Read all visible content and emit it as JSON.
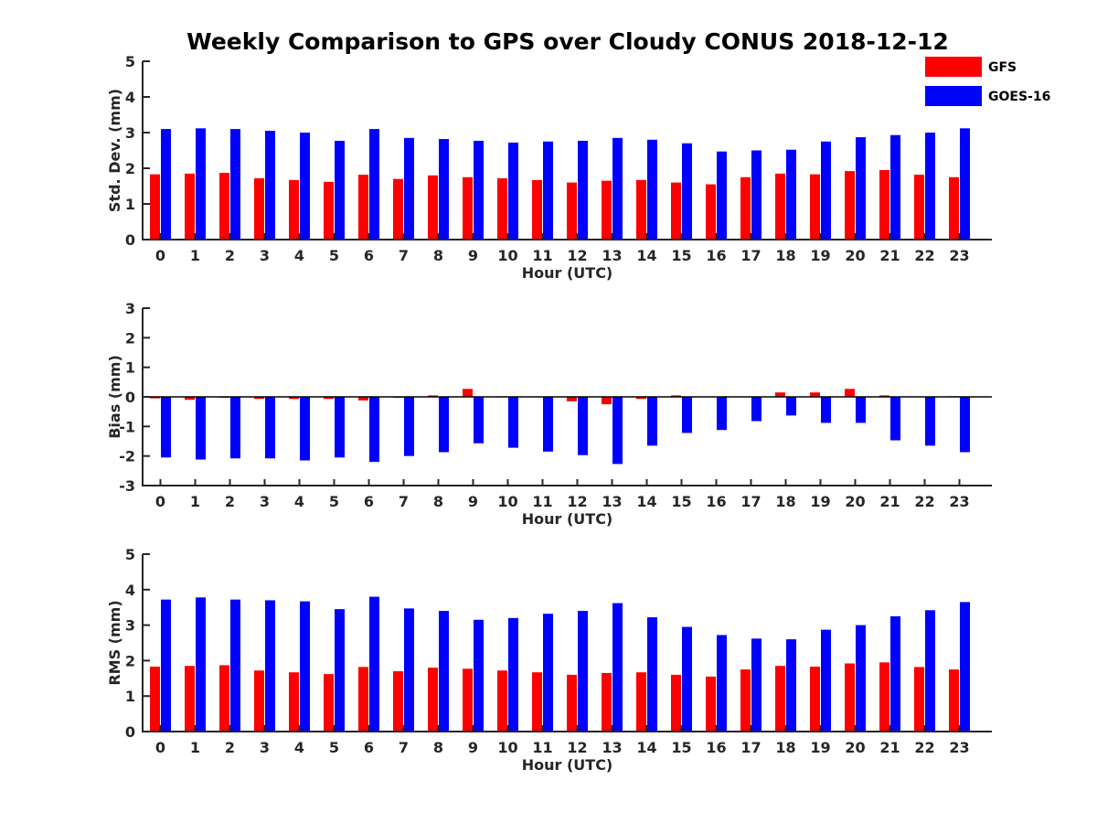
{
  "figure": {
    "title": "Weekly Comparison to GPS over Cloudy CONUS 2018-12-12",
    "legend": {
      "placement": "top-right",
      "entries": [
        "GFS",
        "GOES-16"
      ]
    }
  },
  "colors": {
    "GFS": "#ff0000",
    "GOES-16": "#0000ff"
  },
  "chart_data": [
    {
      "type": "bar",
      "xlabel": "Hour (UTC)",
      "ylabel": "Std. Dev. (mm)",
      "ylim": [
        0,
        5
      ],
      "yticks": [
        0,
        1,
        2,
        3,
        4,
        5
      ],
      "categories": [
        "0",
        "1",
        "2",
        "3",
        "4",
        "5",
        "6",
        "7",
        "8",
        "9",
        "10",
        "11",
        "12",
        "13",
        "14",
        "15",
        "16",
        "17",
        "18",
        "19",
        "20",
        "21",
        "22",
        "23"
      ],
      "series": [
        {
          "name": "GFS",
          "values": [
            1.83,
            1.85,
            1.87,
            1.72,
            1.67,
            1.62,
            1.82,
            1.7,
            1.8,
            1.75,
            1.72,
            1.67,
            1.6,
            1.65,
            1.67,
            1.6,
            1.55,
            1.75,
            1.85,
            1.83,
            1.92,
            1.95,
            1.82,
            1.75
          ]
        },
        {
          "name": "GOES-16",
          "values": [
            3.1,
            3.12,
            3.1,
            3.05,
            3.0,
            2.77,
            3.1,
            2.85,
            2.82,
            2.77,
            2.72,
            2.75,
            2.77,
            2.85,
            2.8,
            2.7,
            2.47,
            2.5,
            2.52,
            2.75,
            2.87,
            2.93,
            3.0,
            3.12
          ]
        }
      ]
    },
    {
      "type": "bar",
      "xlabel": "Hour (UTC)",
      "ylabel": "Bias (mm)",
      "ylim": [
        -3,
        3
      ],
      "yticks": [
        -3,
        -2,
        -1,
        0,
        1,
        2,
        3
      ],
      "categories": [
        "0",
        "1",
        "2",
        "3",
        "4",
        "5",
        "6",
        "7",
        "8",
        "9",
        "10",
        "11",
        "12",
        "13",
        "14",
        "15",
        "16",
        "17",
        "18",
        "19",
        "20",
        "21",
        "22",
        "23"
      ],
      "series": [
        {
          "name": "GFS",
          "values": [
            -0.05,
            -0.1,
            -0.03,
            -0.07,
            -0.07,
            -0.07,
            -0.12,
            -0.03,
            0.05,
            0.27,
            0.02,
            0.0,
            -0.15,
            -0.25,
            -0.07,
            0.05,
            0.0,
            0.0,
            0.15,
            0.15,
            0.27,
            0.05,
            0.0,
            0.02
          ]
        },
        {
          "name": "GOES-16",
          "values": [
            -2.05,
            -2.12,
            -2.08,
            -2.08,
            -2.15,
            -2.05,
            -2.2,
            -2.0,
            -1.87,
            -1.57,
            -1.72,
            -1.85,
            -1.97,
            -2.27,
            -1.65,
            -1.22,
            -1.12,
            -0.82,
            -0.63,
            -0.88,
            -0.88,
            -1.47,
            -1.65,
            -1.87
          ]
        }
      ]
    },
    {
      "type": "bar",
      "xlabel": "Hour (UTC)",
      "ylabel": "RMS (mm)",
      "ylim": [
        0,
        5
      ],
      "yticks": [
        0,
        1,
        2,
        3,
        4,
        5
      ],
      "categories": [
        "0",
        "1",
        "2",
        "3",
        "4",
        "5",
        "6",
        "7",
        "8",
        "9",
        "10",
        "11",
        "12",
        "13",
        "14",
        "15",
        "16",
        "17",
        "18",
        "19",
        "20",
        "21",
        "22",
        "23"
      ],
      "series": [
        {
          "name": "GFS",
          "values": [
            1.83,
            1.85,
            1.87,
            1.72,
            1.67,
            1.62,
            1.82,
            1.7,
            1.8,
            1.77,
            1.72,
            1.67,
            1.6,
            1.65,
            1.67,
            1.6,
            1.55,
            1.75,
            1.85,
            1.83,
            1.92,
            1.95,
            1.82,
            1.75
          ]
        },
        {
          "name": "GOES-16",
          "values": [
            3.72,
            3.78,
            3.72,
            3.7,
            3.67,
            3.45,
            3.8,
            3.47,
            3.4,
            3.15,
            3.2,
            3.32,
            3.4,
            3.62,
            3.22,
            2.95,
            2.72,
            2.62,
            2.6,
            2.87,
            3.0,
            3.25,
            3.42,
            3.65
          ]
        }
      ]
    }
  ]
}
